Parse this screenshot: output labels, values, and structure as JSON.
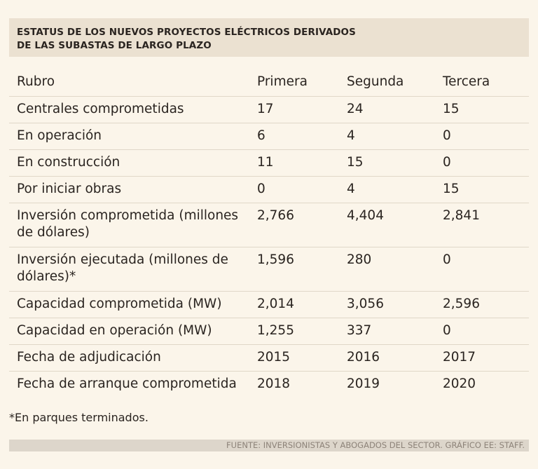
{
  "title": {
    "line1": "ESTATUS DE LOS NUEVOS PROYECTOS ELÉCTRICOS DERIVADOS",
    "line2": "DE LAS SUBASTAS DE LARGO PLAZO"
  },
  "table": {
    "headers": [
      "Rubro",
      "Primera",
      "Segunda",
      "Tercera"
    ],
    "rows": [
      [
        "Centrales comprometidas",
        "17",
        "24",
        "15"
      ],
      [
        "En operación",
        "6",
        "4",
        "0"
      ],
      [
        "En construcción",
        "11",
        "15",
        "0"
      ],
      [
        "Por iniciar obras",
        "0",
        "4",
        "15"
      ],
      [
        "Inversión comprometida (millones de dólares)",
        "2,766",
        "4,404",
        "2,841"
      ],
      [
        "Inversión ejecutada (millones de dólares)*",
        "1,596",
        "280",
        "0"
      ],
      [
        "Capacidad comprometida (MW)",
        "2,014",
        "3,056",
        "2,596"
      ],
      [
        "Capacidad en operación (MW)",
        "1,255",
        "337",
        "0"
      ],
      [
        "Fecha de adjudicación",
        "2015",
        "2016",
        "2017"
      ],
      [
        "Fecha de arranque comprometida",
        "2018",
        "2019",
        "2020"
      ]
    ]
  },
  "footnote": "*En parques terminados.",
  "source": "FUENTE: INVERSIONISTAS Y ABOGADOS DEL SECTOR. GRÁFICO EE: STAFF.",
  "colors": {
    "background": "#fbf5ea",
    "title_bar": "#ebe1d1",
    "source_bar": "#ddd6cb",
    "text": "#2a2420"
  }
}
